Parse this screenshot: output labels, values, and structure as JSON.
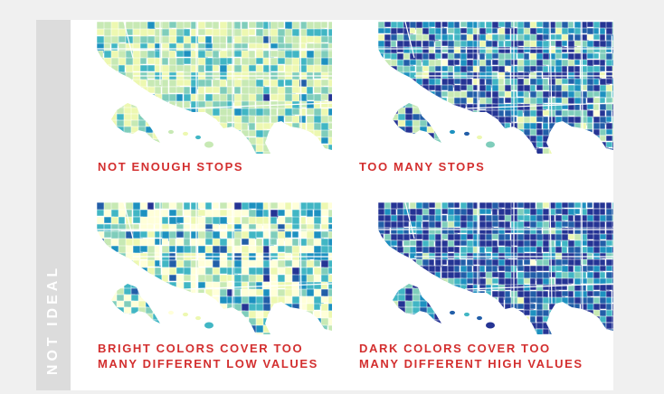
{
  "side_label": "NOT IDEAL",
  "colors": {
    "caption": "#d32f2f",
    "strip": "#dcdcdc",
    "strip_text": "#ffffff",
    "palette_lightest": "#f7fcb9",
    "palette_mid": "#41b6c4",
    "palette_darkest": "#253494"
  },
  "panels": [
    {
      "name": "not-enough-stops",
      "caption_lines": [
        "NOT ENOUGH STOPS"
      ]
    },
    {
      "name": "too-many-stops",
      "caption_lines": [
        "TOO MANY STOPS"
      ]
    },
    {
      "name": "bright-colors",
      "caption_lines": [
        "BRIGHT COLORS COVER TOO",
        "MANY DIFFERENT LOW VALUES"
      ]
    },
    {
      "name": "dark-colors",
      "caption_lines": [
        "DARK COLORS COVER TOO",
        "MANY DIFFERENT HIGH VALUES"
      ]
    }
  ]
}
